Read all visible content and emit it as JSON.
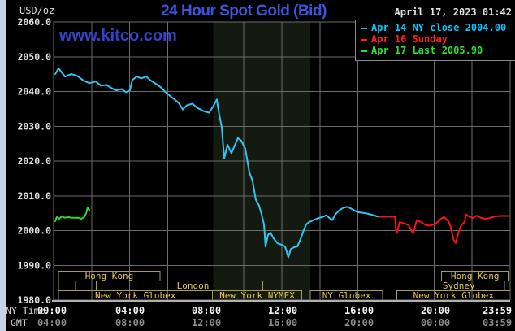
{
  "header": {
    "units_label": "USD/oz",
    "title": "24 Hour Spot Gold (Bid)",
    "datetime": "April 17, 2023 01:42",
    "watermark": "www.kitco.com"
  },
  "legend": {
    "items": [
      {
        "label": "Apr 14 NY close 2004.00",
        "color": "#00c8ff"
      },
      {
        "label": "Apr 16 Sunday",
        "color": "#ff2020"
      },
      {
        "label": "Apr 17 Last 2005.90",
        "color": "#30e030"
      }
    ]
  },
  "axes": {
    "ny_time_label": "NY Time",
    "gmt_label": "GMT",
    "ny_ticks": [
      "00:00",
      "04:00",
      "08:00",
      "12:00",
      "16:00",
      "20:00",
      "23:59"
    ],
    "gmt_ticks": [
      "04:00",
      "08:00",
      "12:00",
      "16:00",
      "20:00",
      "00:00",
      "03:59"
    ]
  },
  "colors": {
    "title_blue": "#3c55e1",
    "watermark_blue": "#3344cc",
    "grid": "#6b6b6b",
    "band": "#151a11",
    "session_border": "#a59c55",
    "session_text": "#e3c84e",
    "axis_line": "#b0b0b0"
  },
  "chart_data": {
    "type": "line",
    "title": "24 Hour Spot Gold (Bid)",
    "ylabel": "USD/oz",
    "ylim": [
      1980,
      2060
    ],
    "xlim_hours": [
      0,
      24
    ],
    "yticks": [
      "2060.0",
      "2050.0",
      "2040.0",
      "2030.0",
      "2020.0",
      "2010.0",
      "2000.0",
      "1990.0",
      "1980.0"
    ],
    "grid": true,
    "legend_position": "top-right",
    "nymex_band_hours": [
      8.4,
      13.5
    ],
    "series": [
      {
        "name": "Apr 14 NY close",
        "color": "#2fc5f5",
        "last_value": 2004.0,
        "points": [
          [
            0.09,
            2045.0
          ],
          [
            0.26,
            2046.7
          ],
          [
            0.6,
            2044.3
          ],
          [
            0.94,
            2045.0
          ],
          [
            1.24,
            2044.5
          ],
          [
            1.58,
            2043.1
          ],
          [
            1.88,
            2042.4
          ],
          [
            2.22,
            2042.9
          ],
          [
            2.48,
            2041.7
          ],
          [
            2.78,
            2041.9
          ],
          [
            3.03,
            2041.0
          ],
          [
            3.29,
            2040.3
          ],
          [
            3.59,
            2040.7
          ],
          [
            3.8,
            2039.8
          ],
          [
            4.01,
            2040.3
          ],
          [
            4.14,
            2043.3
          ],
          [
            4.36,
            2044.3
          ],
          [
            4.61,
            2043.8
          ],
          [
            4.87,
            2044.3
          ],
          [
            5.12,
            2043.1
          ],
          [
            5.38,
            2042.2
          ],
          [
            5.64,
            2041.2
          ],
          [
            5.89,
            2039.8
          ],
          [
            6.15,
            2038.6
          ],
          [
            6.36,
            2037.7
          ],
          [
            6.58,
            2036.7
          ],
          [
            6.79,
            2034.8
          ],
          [
            7.0,
            2036.0
          ],
          [
            7.3,
            2036.5
          ],
          [
            7.56,
            2035.3
          ],
          [
            7.86,
            2034.4
          ],
          [
            8.16,
            2033.9
          ],
          [
            8.37,
            2035.5
          ],
          [
            8.58,
            2037.7
          ],
          [
            8.71,
            2033.2
          ],
          [
            8.84,
            2029.7
          ],
          [
            8.97,
            2020.7
          ],
          [
            9.14,
            2024.7
          ],
          [
            9.35,
            2022.3
          ],
          [
            9.69,
            2026.6
          ],
          [
            9.86,
            2025.9
          ],
          [
            10.08,
            2023.5
          ],
          [
            10.29,
            2016.7
          ],
          [
            10.46,
            2014.3
          ],
          [
            10.63,
            2008.9
          ],
          [
            10.8,
            2007.2
          ],
          [
            10.93,
            2004.8
          ],
          [
            11.06,
            2001.8
          ],
          [
            11.14,
            1995.4
          ],
          [
            11.27,
            1998.7
          ],
          [
            11.4,
            1999.4
          ],
          [
            11.57,
            1997.7
          ],
          [
            11.78,
            1996.3
          ],
          [
            12.0,
            1995.9
          ],
          [
            12.17,
            1995.4
          ],
          [
            12.34,
            1992.3
          ],
          [
            12.47,
            1994.7
          ],
          [
            12.64,
            1995.2
          ],
          [
            12.81,
            1995.4
          ],
          [
            12.98,
            1997.5
          ],
          [
            13.15,
            2000.1
          ],
          [
            13.28,
            2001.8
          ],
          [
            13.45,
            2002.5
          ],
          [
            13.66,
            2003.0
          ],
          [
            13.88,
            2003.5
          ],
          [
            14.13,
            2003.9
          ],
          [
            14.35,
            2004.4
          ],
          [
            14.52,
            2003.5
          ],
          [
            14.65,
            2003.0
          ],
          [
            14.82,
            2004.7
          ],
          [
            15.03,
            2005.9
          ],
          [
            15.24,
            2006.6
          ],
          [
            15.46,
            2006.8
          ],
          [
            15.71,
            2006.1
          ],
          [
            15.97,
            2005.3
          ],
          [
            16.27,
            2005.1
          ],
          [
            16.57,
            2004.8
          ],
          [
            16.82,
            2004.4
          ],
          [
            17.0,
            2004.1
          ],
          [
            17.12,
            2004.0
          ]
        ]
      },
      {
        "name": "Apr 16 Sunday",
        "color": "#f81414",
        "points": [
          [
            17.12,
            2004.0
          ],
          [
            17.95,
            2004.0
          ],
          [
            18.0,
            2000.0
          ],
          [
            18.05,
            1999.3
          ],
          [
            18.19,
            2002.4
          ],
          [
            18.4,
            2002.1
          ],
          [
            18.66,
            2001.6
          ],
          [
            18.83,
            1999.8
          ],
          [
            18.91,
            1999.3
          ],
          [
            19.09,
            2003.0
          ],
          [
            19.3,
            2002.5
          ],
          [
            19.56,
            2001.6
          ],
          [
            19.81,
            2001.4
          ],
          [
            20.11,
            2002.1
          ],
          [
            20.37,
            2003.4
          ],
          [
            20.53,
            2003.9
          ],
          [
            20.75,
            2002.7
          ],
          [
            20.88,
            2001.1
          ],
          [
            21.01,
            1997.6
          ],
          [
            21.14,
            1996.4
          ],
          [
            21.31,
            1999.9
          ],
          [
            21.44,
            2001.6
          ],
          [
            21.61,
            2002.5
          ],
          [
            21.68,
            2004.6
          ],
          [
            21.82,
            2004.1
          ],
          [
            22.03,
            2003.6
          ],
          [
            22.24,
            2004.3
          ],
          [
            22.49,
            2003.6
          ],
          [
            22.71,
            2003.3
          ],
          [
            22.92,
            2003.6
          ],
          [
            23.22,
            2004.1
          ],
          [
            23.52,
            2004.2
          ],
          [
            23.95,
            2004.2
          ]
        ]
      },
      {
        "name": "Apr 17 Last",
        "color": "#30d830",
        "last_value": 2005.9,
        "points": [
          [
            0.09,
            2002.7
          ],
          [
            0.17,
            2003.9
          ],
          [
            0.3,
            2003.4
          ],
          [
            0.43,
            2004.1
          ],
          [
            0.6,
            2003.7
          ],
          [
            0.77,
            2003.9
          ],
          [
            0.94,
            2003.7
          ],
          [
            1.11,
            2003.7
          ],
          [
            1.28,
            2003.7
          ],
          [
            1.45,
            2003.4
          ],
          [
            1.62,
            2003.9
          ],
          [
            1.71,
            2004.9
          ],
          [
            1.79,
            2006.6
          ],
          [
            1.88,
            2005.9
          ]
        ]
      }
    ],
    "sessions": [
      {
        "row": 1,
        "label": "Hong Kong",
        "start": 0.25,
        "end": 5.6
      },
      {
        "row": 1,
        "label": "Hong Kong",
        "start": 20.4,
        "end": 23.9
      },
      {
        "row": 2,
        "label": "",
        "start": 0.25,
        "end": 1.15
      },
      {
        "row": 2,
        "label": "",
        "start": 1.15,
        "end": 2.25
      },
      {
        "row": 2,
        "label": "",
        "start": 2.25,
        "end": 3.65
      },
      {
        "row": 2,
        "label": "London",
        "start": 3.65,
        "end": 11.0
      },
      {
        "row": 2,
        "label": "Sydney",
        "start": 18.9,
        "end": 23.7
      },
      {
        "row": 3,
        "label": "New York Globex",
        "start": 0.25,
        "end": 8.35
      },
      {
        "row": 3,
        "label": "New York NYMEX",
        "start": 8.35,
        "end": 13.05
      },
      {
        "row": 3,
        "label": "NY Globex",
        "start": 13.5,
        "end": 17.3
      },
      {
        "row": 3,
        "label": "New York Globex",
        "start": 18.05,
        "end": 24.0
      }
    ]
  }
}
